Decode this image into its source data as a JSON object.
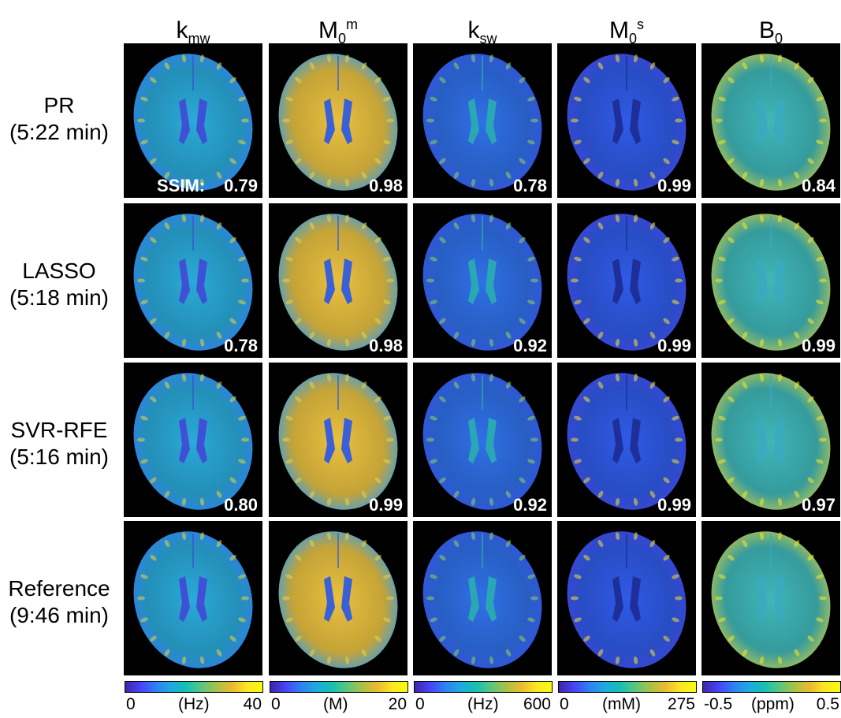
{
  "columns": [
    {
      "base": "k",
      "sub": "mw",
      "sup": ""
    },
    {
      "base": "M",
      "sub": "0",
      "sup": "m"
    },
    {
      "base": "k",
      "sub": "sw",
      "sup": ""
    },
    {
      "base": "M",
      "sub": "0",
      "sup": "s"
    },
    {
      "base": "B",
      "sub": "0",
      "sup": ""
    }
  ],
  "rows": [
    {
      "name": "PR",
      "time": "(5:22 min)",
      "ssim": [
        "0.79",
        "0.98",
        "0.78",
        "0.99",
        "0.84"
      ]
    },
    {
      "name": "LASSO",
      "time": "(5:18 min)",
      "ssim": [
        "0.78",
        "0.98",
        "0.92",
        "0.99",
        "0.99"
      ]
    },
    {
      "name": "SVR-RFE",
      "time": "(5:16 min)",
      "ssim": [
        "0.80",
        "0.99",
        "0.92",
        "0.99",
        "0.97"
      ]
    },
    {
      "name": "Reference",
      "time": "(9:46 min)",
      "ssim": [
        "",
        "",
        "",
        "",
        ""
      ]
    }
  ],
  "ssim_label": "SSIM:",
  "colorbars": [
    {
      "min": "0",
      "unit": "(Hz)",
      "max": "40"
    },
    {
      "min": "0",
      "unit": "(M)",
      "max": "20"
    },
    {
      "min": "0",
      "unit": "(Hz)",
      "max": "600"
    },
    {
      "min": "0",
      "unit": "(mM)",
      "max": "275"
    },
    {
      "min": "-0.5",
      "unit": "(ppm)",
      "max": "0.5"
    }
  ],
  "colormap": "parula",
  "colors": {
    "background": "#000000",
    "ssim_text": "#ffffff"
  }
}
